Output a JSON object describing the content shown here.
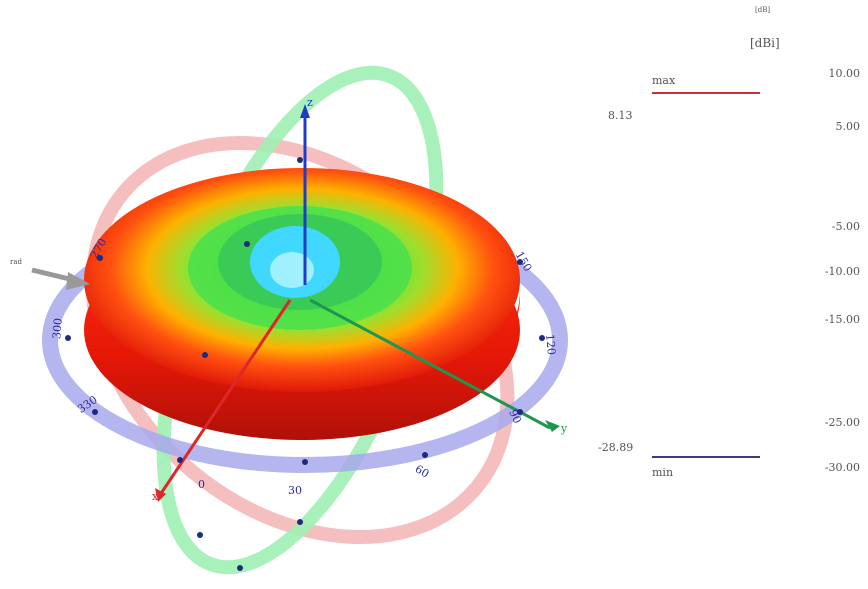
{
  "colorbar": {
    "unit_small": "[dB]",
    "unit": "[dBi]",
    "max_label": "max",
    "min_label": "min",
    "max_value": "8.13",
    "min_value": "-28.89",
    "max_color": "#c83232",
    "min_color": "#3c3c78",
    "ticks": [
      "10.00",
      "5.00",
      "-5.00",
      "-10.00",
      "-15.00",
      "-25.00",
      "-30.00"
    ]
  },
  "axes": {
    "z_label": "z",
    "y_label": "y",
    "x_label": "x",
    "z_color": "#1e3cc8",
    "y_color": "#1e9650",
    "x_color": "#dc2828"
  },
  "blue_ring": {
    "color": "#a0a0e6",
    "labels": [
      "270",
      "150",
      "120",
      "300",
      "330",
      "90",
      "60",
      "30",
      "0"
    ]
  },
  "green_ring": {
    "color": "#a0f0b4"
  },
  "red_ring": {
    "color": "#f5b4b4"
  },
  "pattern_colors": {
    "outer": "#ff2a10",
    "mid": "#ffb800",
    "inner": "#40e040",
    "center": "#40d8ff"
  },
  "probe_label": "rad"
}
